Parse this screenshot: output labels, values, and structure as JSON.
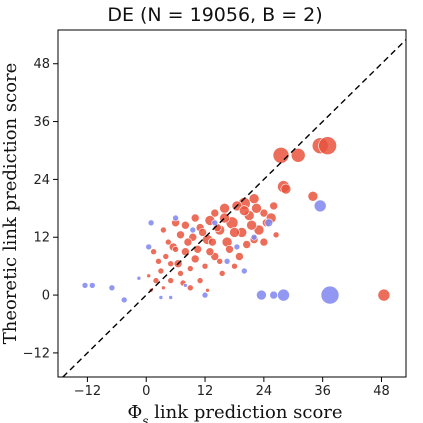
{
  "chart_data": {
    "type": "scatter",
    "title": "DE (N = 19056, B = 2)",
    "xlabel": "Φ_s link prediction score",
    "xlabel_parts": {
      "base": "Φ",
      "sub": "s",
      "rest": " link prediction score"
    },
    "ylabel": "Theoretic link prediction score",
    "xlim": [
      -18,
      53
    ],
    "ylim": [
      -17,
      55
    ],
    "xticks": [
      -12,
      0,
      12,
      24,
      36,
      48
    ],
    "yticks": [
      -12,
      0,
      12,
      24,
      36,
      48
    ],
    "grid": false,
    "reference_line": "y = x (dashed)",
    "colors": {
      "red": "#e8533d",
      "blue": "#7f86f0"
    },
    "series": [
      {
        "color": "red",
        "points": [
          [
            27.5,
            29,
            8
          ],
          [
            31,
            29,
            7
          ],
          [
            35.5,
            31,
            8
          ],
          [
            37,
            31,
            9
          ],
          [
            28,
            22.5,
            6
          ],
          [
            28.5,
            22,
            5
          ],
          [
            34,
            20.5,
            5
          ],
          [
            48.5,
            0,
            6
          ],
          [
            22,
            20,
            5
          ],
          [
            20,
            19,
            6
          ],
          [
            18.5,
            18.5,
            5
          ],
          [
            16,
            18,
            5
          ],
          [
            14,
            17,
            4
          ],
          [
            21,
            16.5,
            5
          ],
          [
            24,
            17,
            4
          ],
          [
            17.5,
            15,
            6
          ],
          [
            13,
            15.5,
            5
          ],
          [
            11,
            14,
            4
          ],
          [
            15,
            13.5,
            5
          ],
          [
            19.5,
            13,
            5
          ],
          [
            23,
            13.5,
            5
          ],
          [
            24.5,
            15,
            4
          ],
          [
            9.5,
            12,
            4
          ],
          [
            12.5,
            11.5,
            5
          ],
          [
            7,
            12.5,
            4
          ],
          [
            16.5,
            11,
            5
          ],
          [
            5.5,
            10,
            4
          ],
          [
            8,
            9,
            4
          ],
          [
            10.5,
            9.5,
            4
          ],
          [
            14,
            8,
            4
          ],
          [
            4,
            8,
            3
          ],
          [
            6.5,
            6.5,
            4
          ],
          [
            3,
            5,
            3
          ],
          [
            9,
            5.5,
            3
          ],
          [
            12,
            6,
            3
          ],
          [
            2,
            3,
            3
          ],
          [
            5,
            3,
            3
          ],
          [
            7.5,
            2.5,
            3
          ],
          [
            1,
            1,
            2
          ],
          [
            11,
            3,
            3
          ],
          [
            17,
            9.5,
            4
          ],
          [
            20.5,
            10.5,
            4
          ],
          [
            22,
            11.5,
            4
          ],
          [
            8,
            14.5,
            4
          ],
          [
            3.5,
            13.5,
            3
          ],
          [
            18,
            6,
            3
          ],
          [
            15.5,
            4.5,
            3
          ],
          [
            6,
            15,
            4
          ],
          [
            10,
            16,
            4
          ],
          [
            13.5,
            11,
            4
          ],
          [
            4.5,
            11,
            3
          ],
          [
            9,
            1.5,
            3
          ],
          [
            12.5,
            1,
            2
          ],
          [
            2.5,
            7,
            3
          ],
          [
            7,
            4.5,
            3
          ],
          [
            1.5,
            9,
            3
          ],
          [
            0.5,
            4,
            2
          ],
          [
            19,
            8,
            4
          ],
          [
            24,
            11,
            4
          ],
          [
            25.5,
            16,
            5
          ],
          [
            26,
            18.5,
            4
          ],
          [
            11.5,
            13,
            4
          ],
          [
            16,
            16,
            5
          ],
          [
            14.5,
            14,
            4
          ],
          [
            21.5,
            14.5,
            5
          ],
          [
            5,
            6.5,
            3
          ],
          [
            10,
            7.5,
            4
          ],
          [
            26.5,
            12.5,
            3
          ],
          [
            3.5,
            1.5,
            2
          ],
          [
            8.5,
            11,
            4
          ],
          [
            20,
            17.5,
            5
          ],
          [
            22.5,
            18,
            5
          ],
          [
            18,
            13,
            5
          ],
          [
            13,
            9,
            4
          ],
          [
            6,
            9.5,
            3
          ],
          [
            15,
            7,
            3
          ]
        ]
      },
      {
        "color": "blue",
        "points": [
          [
            37.5,
            0,
            9
          ],
          [
            28,
            0,
            6
          ],
          [
            26,
            0,
            4
          ],
          [
            23.5,
            0,
            5
          ],
          [
            35.5,
            18.5,
            6
          ],
          [
            25,
            15,
            4
          ],
          [
            -12.5,
            2,
            3
          ],
          [
            -11,
            2,
            3
          ],
          [
            -7,
            1.5,
            3
          ],
          [
            -4.5,
            -1,
            3
          ],
          [
            1,
            15,
            3
          ],
          [
            0.5,
            10,
            3
          ],
          [
            3,
            -0.5,
            2
          ],
          [
            16.5,
            7,
            3
          ],
          [
            20,
            5,
            3
          ],
          [
            12,
            0,
            3
          ],
          [
            5,
            -0.5,
            2
          ],
          [
            8,
            2,
            2
          ],
          [
            22,
            12,
            3
          ],
          [
            6,
            16,
            3
          ],
          [
            9.5,
            13.5,
            3
          ],
          [
            18.5,
            10,
            3
          ],
          [
            -1.5,
            3.5,
            2
          ],
          [
            14,
            15,
            3
          ]
        ]
      }
    ]
  }
}
